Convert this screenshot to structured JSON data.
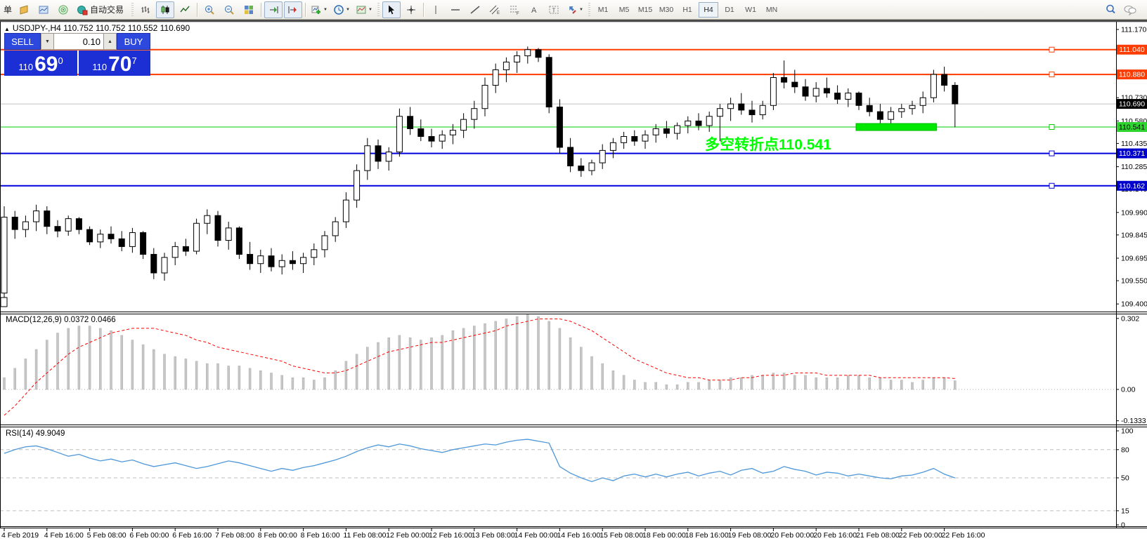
{
  "toolbar": {
    "partial_label": "单",
    "autotrading_label": "自动交易",
    "timeframes": [
      "M1",
      "M5",
      "M15",
      "M30",
      "H1",
      "H4",
      "D1",
      "W1",
      "MN"
    ],
    "active_timeframe": "H4",
    "icons": [
      "new-order",
      "market-watch",
      "signal",
      "autotrading",
      "bar-chart",
      "candlestick-chart",
      "line-chart",
      "zoom-in",
      "zoom-out",
      "tile-windows",
      "auto-scroll",
      "chart-shift",
      "indicators-add",
      "periods",
      "templates",
      "cursor",
      "crosshair",
      "vertical-line",
      "horizontal-line",
      "trendline",
      "equidistant-channel",
      "fibonacci",
      "text",
      "text-label",
      "arrows",
      "search",
      "chat"
    ]
  },
  "chart_header": {
    "title": "USDJPY-,H4  110.752 110.752 110.552 110.690"
  },
  "trade_panel": {
    "sell_label": "SELL",
    "buy_label": "BUY",
    "volume": "0.10",
    "sell_price_base": "110",
    "sell_price_big": "69",
    "sell_price_sup": "0",
    "buy_price_base": "110",
    "buy_price_big": "70",
    "buy_price_sup": "7"
  },
  "annotation": {
    "text": "多空转折点110.541",
    "color": "#00ff00"
  },
  "colors": {
    "level_orange": "#ff3c00",
    "level_blue": "#0000dd",
    "level_green": "#00cc00",
    "bid_line": "#c0c0c0",
    "badge_black": "#000000",
    "badge_green": "#2ed52e",
    "macd_hist": "#c6c6c6",
    "macd_signal": "#ff0000",
    "rsi_line": "#4e97d9",
    "highlight_green": "#00e800",
    "panel_blue": "#2d49dd",
    "panel_blue_dark": "#1b2fd4"
  },
  "chart_data": [
    {
      "type": "candlestick",
      "symbol": "USDJPY-",
      "period": "H4",
      "ohlc_display": {
        "open": "110.752",
        "high": "110.752",
        "low": "110.552",
        "close": "110.690"
      },
      "ylim": [
        109.4,
        111.17
      ],
      "y_ticks": [
        "111.170",
        "111.025",
        "110.880",
        "110.730",
        "110.580",
        "110.435",
        "110.285",
        "110.140",
        "109.990",
        "109.845",
        "109.695",
        "109.550",
        "109.400"
      ],
      "x_labels": [
        "4 Feb 2019",
        "4 Feb 16:00",
        "5 Feb 08:00",
        "6 Feb 00:00",
        "6 Feb 16:00",
        "7 Feb 08:00",
        "8 Feb 00:00",
        "8 Feb 16:00",
        "11 Feb 08:00",
        "12 Feb 00:00",
        "12 Feb 16:00",
        "13 Feb 08:00",
        "14 Feb 00:00",
        "14 Feb 16:00",
        "15 Feb 08:00",
        "18 Feb 00:00",
        "18 Feb 16:00",
        "19 Feb 08:00",
        "20 Feb 00:00",
        "20 Feb 16:00",
        "21 Feb 08:00",
        "22 Feb 00:00",
        "22 Feb 16:00"
      ],
      "bars_per_label": 4,
      "current_bid": {
        "price": 110.69,
        "label": "110.690"
      },
      "levels": [
        {
          "price": 111.04,
          "label": "111.040",
          "color": "#ff3c00",
          "badge_bg": "#ff3c00",
          "badge_fg": "#ffffff",
          "width": 2
        },
        {
          "price": 110.88,
          "label": "110.880",
          "color": "#ff3c00",
          "badge_bg": "#ff3c00",
          "badge_fg": "#ffffff",
          "width": 2
        },
        {
          "price": 110.541,
          "label": "110.541",
          "color": "#00cc00",
          "badge_bg": "#2ed52e",
          "badge_fg": "#000000",
          "width": 1
        },
        {
          "price": 110.371,
          "label": "110.371",
          "color": "#0000dd",
          "badge_bg": "#0000cc",
          "badge_fg": "#ffffff",
          "width": 2
        },
        {
          "price": 110.162,
          "label": "110.162",
          "color": "#0000dd",
          "badge_bg": "#0000cc",
          "badge_fg": "#ffffff",
          "width": 2
        }
      ],
      "highlight_box": {
        "start_bar": 80,
        "end_bar": 87,
        "price": 110.541
      },
      "ohlc": [
        [
          109.47,
          110.03,
          109.44,
          109.96
        ],
        [
          109.96,
          110.0,
          109.82,
          109.88
        ],
        [
          109.88,
          109.97,
          109.83,
          109.93
        ],
        [
          109.93,
          110.04,
          109.87,
          110.0
        ],
        [
          110.0,
          110.03,
          109.85,
          109.9
        ],
        [
          109.9,
          109.94,
          109.83,
          109.87
        ],
        [
          109.87,
          109.97,
          109.84,
          109.95
        ],
        [
          109.95,
          109.96,
          109.85,
          109.88
        ],
        [
          109.88,
          109.9,
          109.78,
          109.8
        ],
        [
          109.8,
          109.88,
          109.76,
          109.85
        ],
        [
          109.85,
          109.9,
          109.79,
          109.82
        ],
        [
          109.82,
          109.87,
          109.74,
          109.77
        ],
        [
          109.77,
          109.89,
          109.73,
          109.86
        ],
        [
          109.86,
          109.87,
          109.69,
          109.72
        ],
        [
          109.72,
          109.76,
          109.56,
          109.6
        ],
        [
          109.6,
          109.73,
          109.55,
          109.7
        ],
        [
          109.7,
          109.8,
          109.65,
          109.77
        ],
        [
          109.77,
          109.82,
          109.71,
          109.74
        ],
        [
          109.74,
          109.95,
          109.72,
          109.92
        ],
        [
          109.92,
          110.01,
          109.85,
          109.97
        ],
        [
          109.97,
          110.0,
          109.77,
          109.81
        ],
        [
          109.81,
          109.93,
          109.75,
          109.89
        ],
        [
          109.89,
          109.9,
          109.69,
          109.72
        ],
        [
          109.72,
          109.8,
          109.62,
          109.66
        ],
        [
          109.66,
          109.75,
          109.6,
          109.71
        ],
        [
          109.71,
          109.76,
          109.61,
          109.64
        ],
        [
          109.64,
          109.72,
          109.59,
          109.68
        ],
        [
          109.68,
          109.74,
          109.62,
          109.66
        ],
        [
          109.66,
          109.73,
          109.6,
          109.7
        ],
        [
          109.7,
          109.79,
          109.65,
          109.75
        ],
        [
          109.75,
          109.87,
          109.7,
          109.84
        ],
        [
          109.84,
          109.96,
          109.8,
          109.93
        ],
        [
          109.93,
          110.12,
          109.89,
          110.07
        ],
        [
          110.07,
          110.3,
          110.02,
          110.26
        ],
        [
          110.26,
          110.47,
          110.2,
          110.42
        ],
        [
          110.42,
          110.46,
          110.27,
          110.32
        ],
        [
          110.32,
          110.41,
          110.26,
          110.38
        ],
        [
          110.38,
          110.66,
          110.35,
          110.61
        ],
        [
          110.61,
          110.67,
          110.49,
          110.53
        ],
        [
          110.53,
          110.59,
          110.45,
          110.48
        ],
        [
          110.48,
          110.53,
          110.41,
          110.45
        ],
        [
          110.45,
          110.52,
          110.4,
          110.49
        ],
        [
          110.49,
          110.56,
          110.43,
          110.52
        ],
        [
          110.52,
          110.63,
          110.47,
          110.59
        ],
        [
          110.59,
          110.71,
          110.53,
          110.66
        ],
        [
          110.66,
          110.86,
          110.61,
          110.81
        ],
        [
          110.81,
          110.95,
          110.76,
          110.91
        ],
        [
          110.91,
          110.99,
          110.83,
          110.96
        ],
        [
          110.96,
          111.03,
          110.89,
          111.0
        ],
        [
          111.0,
          111.06,
          110.95,
          111.04
        ],
        [
          111.04,
          111.05,
          110.96,
          110.99
        ],
        [
          110.99,
          111.01,
          110.63,
          110.67
        ],
        [
          110.67,
          110.72,
          110.37,
          110.41
        ],
        [
          110.41,
          110.47,
          110.25,
          110.29
        ],
        [
          110.29,
          110.34,
          110.22,
          110.26
        ],
        [
          110.26,
          110.33,
          110.23,
          110.31
        ],
        [
          110.31,
          110.43,
          110.27,
          110.39
        ],
        [
          110.39,
          110.47,
          110.34,
          110.44
        ],
        [
          110.44,
          110.51,
          110.4,
          110.48
        ],
        [
          110.48,
          110.52,
          110.42,
          110.45
        ],
        [
          110.45,
          110.52,
          110.4,
          110.49
        ],
        [
          110.49,
          110.56,
          110.44,
          110.53
        ],
        [
          110.53,
          110.58,
          110.47,
          110.5
        ],
        [
          110.5,
          110.57,
          110.46,
          110.55
        ],
        [
          110.55,
          110.61,
          110.5,
          110.58
        ],
        [
          110.58,
          110.63,
          110.52,
          110.55
        ],
        [
          110.55,
          110.64,
          110.51,
          110.61
        ],
        [
          110.61,
          110.69,
          110.45,
          110.66
        ],
        [
          110.66,
          110.73,
          110.58,
          110.69
        ],
        [
          110.69,
          110.76,
          110.62,
          110.65
        ],
        [
          110.65,
          110.71,
          110.57,
          110.62
        ],
        [
          110.62,
          110.71,
          110.59,
          110.68
        ],
        [
          110.68,
          110.89,
          110.65,
          110.86
        ],
        [
          110.86,
          110.97,
          110.79,
          110.83
        ],
        [
          110.83,
          110.91,
          110.76,
          110.8
        ],
        [
          110.8,
          110.85,
          110.71,
          110.74
        ],
        [
          110.74,
          110.83,
          110.7,
          110.79
        ],
        [
          110.79,
          110.86,
          110.73,
          110.76
        ],
        [
          110.76,
          110.81,
          110.69,
          110.72
        ],
        [
          110.72,
          110.79,
          110.67,
          110.76
        ],
        [
          110.76,
          110.77,
          110.65,
          110.68
        ],
        [
          110.68,
          110.73,
          110.61,
          110.64
        ],
        [
          110.64,
          110.69,
          110.55,
          110.59
        ],
        [
          110.59,
          110.67,
          110.56,
          110.64
        ],
        [
          110.64,
          110.69,
          110.6,
          110.66
        ],
        [
          110.66,
          110.71,
          110.62,
          110.68
        ],
        [
          110.68,
          110.77,
          110.63,
          110.73
        ],
        [
          110.73,
          110.91,
          110.7,
          110.88
        ],
        [
          110.88,
          110.93,
          110.77,
          110.81
        ],
        [
          110.81,
          110.83,
          110.54,
          110.69
        ]
      ]
    },
    {
      "type": "macd",
      "label": "MACD(12,26,9) 0.0372 0.0466",
      "params": [
        12,
        26,
        9
      ],
      "current_values": [
        0.0372,
        0.0466
      ],
      "ylim": [
        -0.1333,
        0.302
      ],
      "y_ticks": [
        "0.302",
        "0.00",
        "-0.1333"
      ],
      "histogram": [
        0.05,
        0.09,
        0.13,
        0.17,
        0.21,
        0.24,
        0.26,
        0.27,
        0.27,
        0.26,
        0.25,
        0.23,
        0.21,
        0.19,
        0.17,
        0.15,
        0.14,
        0.13,
        0.12,
        0.11,
        0.11,
        0.1,
        0.1,
        0.09,
        0.08,
        0.07,
        0.06,
        0.05,
        0.05,
        0.04,
        0.05,
        0.08,
        0.12,
        0.15,
        0.18,
        0.2,
        0.22,
        0.23,
        0.22,
        0.21,
        0.22,
        0.23,
        0.25,
        0.26,
        0.27,
        0.28,
        0.29,
        0.3,
        0.31,
        0.32,
        0.31,
        0.29,
        0.26,
        0.22,
        0.18,
        0.14,
        0.11,
        0.08,
        0.06,
        0.04,
        0.03,
        0.03,
        0.02,
        0.02,
        0.03,
        0.03,
        0.04,
        0.04,
        0.05,
        0.05,
        0.06,
        0.06,
        0.07,
        0.07,
        0.06,
        0.06,
        0.05,
        0.05,
        0.05,
        0.06,
        0.06,
        0.05,
        0.05,
        0.04,
        0.04,
        0.03,
        0.04,
        0.05,
        0.05,
        0.0372
      ],
      "signal": [
        -0.11,
        -0.07,
        -0.02,
        0.03,
        0.07,
        0.11,
        0.15,
        0.18,
        0.2,
        0.22,
        0.24,
        0.25,
        0.26,
        0.26,
        0.26,
        0.25,
        0.24,
        0.23,
        0.21,
        0.2,
        0.18,
        0.17,
        0.16,
        0.15,
        0.14,
        0.13,
        0.12,
        0.1,
        0.09,
        0.08,
        0.07,
        0.07,
        0.08,
        0.1,
        0.12,
        0.14,
        0.16,
        0.17,
        0.18,
        0.19,
        0.2,
        0.2,
        0.21,
        0.22,
        0.23,
        0.24,
        0.25,
        0.27,
        0.28,
        0.29,
        0.3,
        0.3,
        0.3,
        0.29,
        0.27,
        0.25,
        0.22,
        0.19,
        0.16,
        0.13,
        0.11,
        0.09,
        0.07,
        0.06,
        0.05,
        0.05,
        0.04,
        0.04,
        0.04,
        0.05,
        0.05,
        0.06,
        0.06,
        0.06,
        0.07,
        0.07,
        0.07,
        0.06,
        0.06,
        0.06,
        0.06,
        0.06,
        0.05,
        0.05,
        0.05,
        0.05,
        0.05,
        0.05,
        0.05,
        0.0466
      ]
    },
    {
      "type": "rsi",
      "label": "RSI(14) 49.9049",
      "period": 14,
      "current_value": 49.9049,
      "ylim": [
        0,
        100
      ],
      "y_ticks": [
        "100",
        "80",
        "50",
        "15",
        "0"
      ],
      "grid_levels": [
        80,
        50,
        15
      ],
      "values": [
        76,
        80,
        83,
        84,
        81,
        77,
        73,
        75,
        71,
        68,
        70,
        67,
        69,
        65,
        62,
        64,
        66,
        63,
        60,
        62,
        65,
        68,
        66,
        63,
        60,
        57,
        60,
        58,
        61,
        63,
        66,
        69,
        73,
        78,
        82,
        85,
        83,
        86,
        84,
        81,
        79,
        77,
        80,
        82,
        84,
        86,
        85,
        88,
        90,
        91,
        89,
        87,
        62,
        55,
        50,
        46,
        50,
        47,
        52,
        54,
        51,
        54,
        51,
        54,
        56,
        52,
        55,
        57,
        53,
        58,
        60,
        55,
        57,
        62,
        59,
        57,
        53,
        56,
        55,
        52,
        54,
        52,
        50,
        49,
        52,
        53,
        56,
        60,
        54,
        49.9
      ]
    }
  ]
}
